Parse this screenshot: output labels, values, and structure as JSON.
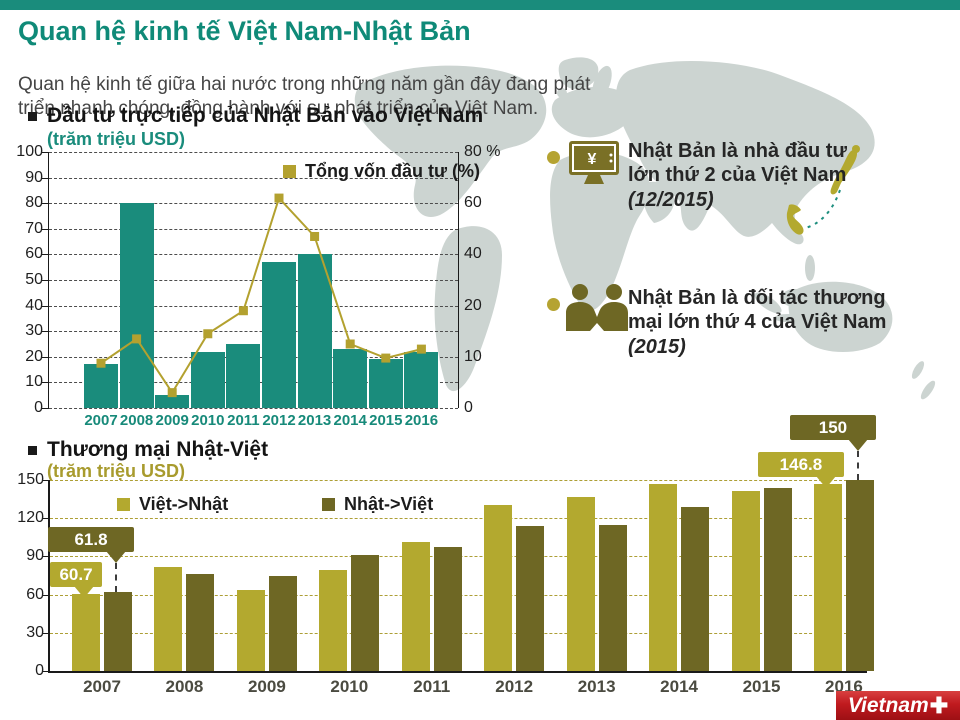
{
  "header": {
    "title": "Quan hệ kinh tế Việt Nam-Nhật Bản",
    "subtitle": "Quan hệ kinh tế giữa hai nước trong những năm gần đây đang phát triển nhanh chóng, đồng hành với sự phát triển của Việt Nam."
  },
  "colors": {
    "teal": "#1a8c7c",
    "light_olive": "#b3a92f",
    "dark_olive": "#6e6724",
    "line_olive": "#b3a12f",
    "map_gray": "#ccd4d1",
    "logo_red": "#c01a1f"
  },
  "chart_data": [
    {
      "type": "bar+line",
      "title": "Đầu tư trực tiếp của Nhật Bản vào Việt Nam",
      "unit_label": "(trăm triệu USD)",
      "categories": [
        "2007",
        "2008",
        "2009",
        "2010",
        "2011",
        "2012",
        "2013",
        "2014",
        "2015",
        "2016"
      ],
      "bar_series": {
        "name": "Đầu tư trực tiếp của Nhật Bản (trăm triệu USD)",
        "color": "#1a8c7c",
        "values": [
          17,
          80,
          5,
          22,
          25,
          57,
          60,
          23,
          19,
          22
        ]
      },
      "line_series": {
        "name": "Tổng vốn đầu tư (%)",
        "color": "#b3a12f",
        "values_on_left_axis": [
          17.5,
          27,
          6,
          29,
          38,
          82,
          67,
          25,
          19.5,
          23
        ]
      },
      "y_left": {
        "min": 0,
        "max": 100,
        "step": 10
      },
      "y_right_ticks": [
        {
          "label": "80 %",
          "at": 100
        },
        {
          "label": "60",
          "at": 80
        },
        {
          "label": "40",
          "at": 60
        },
        {
          "label": "20",
          "at": 40
        },
        {
          "label": "10",
          "at": 20
        },
        {
          "label": "0",
          "at": 0
        }
      ],
      "grid": "dashed",
      "legend_position": "top-right-inside"
    },
    {
      "type": "grouped-bar",
      "title": "Thương mại Nhật-Việt",
      "unit_label": "(trăm triệu USD)",
      "categories": [
        "2007",
        "2008",
        "2009",
        "2010",
        "2011",
        "2012",
        "2013",
        "2014",
        "2015",
        "2016"
      ],
      "series": [
        {
          "name": "Việt->Nhật",
          "color": "#b3a92f",
          "values": [
            60.7,
            82,
            64,
            79,
            101,
            130,
            137,
            147,
            141,
            146.8
          ]
        },
        {
          "name": "Nhật->Việt",
          "color": "#6e6724",
          "values": [
            61.8,
            76,
            75,
            91,
            97,
            114,
            115,
            129,
            144,
            150
          ]
        }
      ],
      "y": {
        "min": 0,
        "max": 150,
        "step": 30
      },
      "callouts": [
        {
          "value": "61.8",
          "series": 1,
          "category": "2007"
        },
        {
          "value": "60.7",
          "series": 0,
          "category": "2007"
        },
        {
          "value": "150",
          "series": 1,
          "category": "2016"
        },
        {
          "value": "146.8",
          "series": 0,
          "category": "2016"
        }
      ],
      "grid": "dashed",
      "legend_position": "top-left-inside"
    }
  ],
  "annotations": [
    {
      "icon": "monitor-yen-icon",
      "text": "Nhật Bản là nhà đầu tư lớn thứ 2 của Việt Nam",
      "note": "(12/2015)"
    },
    {
      "icon": "partnership-icon",
      "text": "Nhật Bản là đối tác thương mại lớn thứ 4 của Việt Nam",
      "note": "(2015)"
    }
  ],
  "map": {
    "highlights": [
      "Việt Nam",
      "Nhật Bản"
    ]
  },
  "logo": {
    "text": "Vietnam",
    "plus": "✚"
  }
}
